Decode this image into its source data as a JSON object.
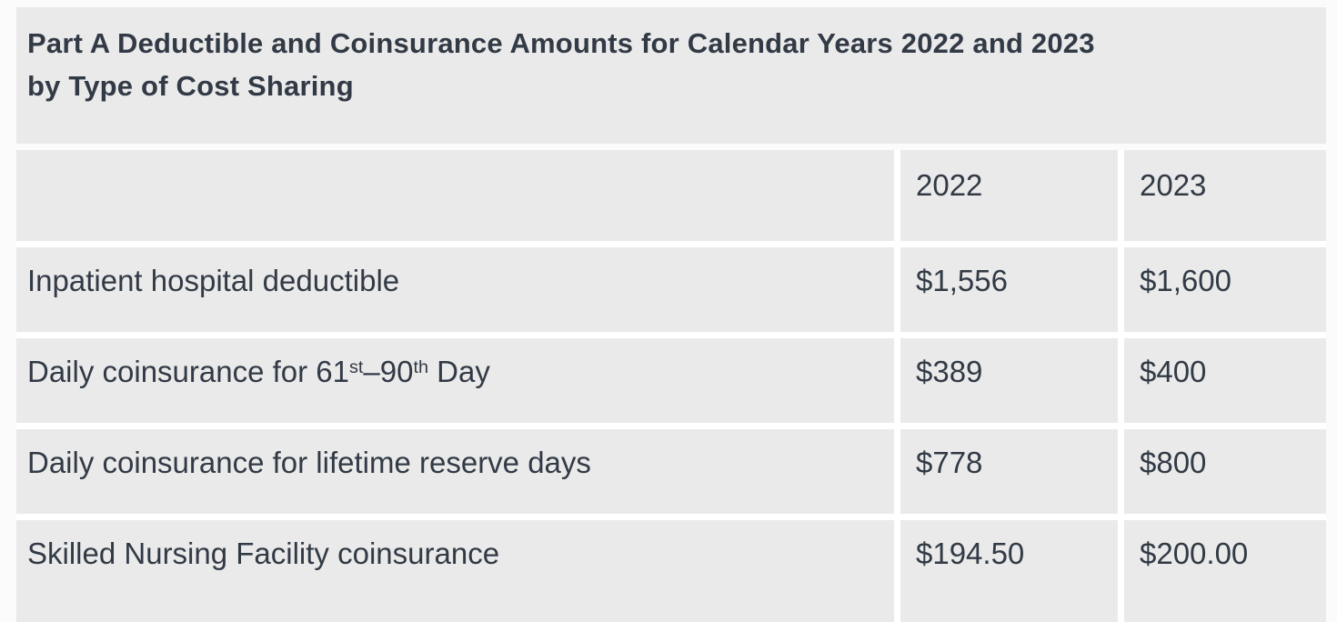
{
  "title": {
    "line1": "Part A Deductible and Coinsurance Amounts for Calendar Years 2022 and 2023",
    "line2": "by Type of Cost Sharing"
  },
  "header": {
    "col_2022": "2022",
    "col_2023": "2023"
  },
  "rows": [
    {
      "label": "Inpatient hospital deductible",
      "y2022": "$1,556",
      "y2023": "$1,600"
    },
    {
      "label_parts": [
        "Daily coinsurance for 61",
        "st",
        "–90",
        "th",
        " Day"
      ],
      "y2022": "$389",
      "y2023": "$400"
    },
    {
      "label": "Daily coinsurance for lifetime reserve days",
      "y2022": "$778",
      "y2023": "$800"
    },
    {
      "label": "Skilled Nursing Facility coinsurance",
      "y2022": "$194.50",
      "y2023": "$200.00"
    }
  ],
  "colors": {
    "cell_background": "#eaeaea",
    "page_background": "#fbfbfb",
    "text": "#323a46",
    "separator": "#ffffff"
  },
  "chart_data": {
    "type": "table",
    "title": "Part A Deductible and Coinsurance Amounts for Calendar Years 2022 and 2023 by Type of Cost Sharing",
    "columns": [
      "Type of Cost Sharing",
      "2022",
      "2023"
    ],
    "rows": [
      [
        "Inpatient hospital deductible",
        "$1,556",
        "$1,600"
      ],
      [
        "Daily coinsurance for 61st–90th Day",
        "$389",
        "$400"
      ],
      [
        "Daily coinsurance for lifetime reserve days",
        "$778",
        "$800"
      ],
      [
        "Skilled Nursing Facility coinsurance",
        "$194.50",
        "$200.00"
      ]
    ],
    "values_numeric": {
      "2022": [
        1556,
        389,
        778,
        194.5
      ],
      "2023": [
        1600,
        400,
        800,
        200.0
      ]
    }
  }
}
